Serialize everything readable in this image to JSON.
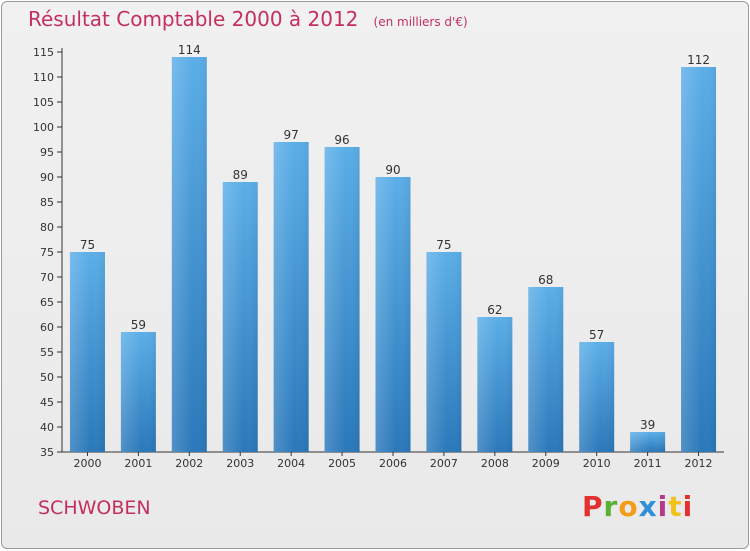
{
  "header": {
    "title": "Résultat Comptable 2000 à 2012",
    "subtitle": "(en milliers d'€)"
  },
  "footer": {
    "commune": "SCHWOBEN",
    "logo_letters": [
      "P",
      "r",
      "o",
      "x",
      "i",
      "t",
      "i"
    ]
  },
  "colors": {
    "accent": "#c4305e",
    "bar_top": "#5baee8",
    "bar_bottom": "#2a78ba"
  },
  "chart_data": {
    "type": "bar",
    "title": "Résultat Comptable 2000 à 2012",
    "subtitle": "(en milliers d'€)",
    "xlabel": "",
    "ylabel": "",
    "categories": [
      "2000",
      "2001",
      "2002",
      "2003",
      "2004",
      "2005",
      "2006",
      "2007",
      "2008",
      "2009",
      "2010",
      "2011",
      "2012"
    ],
    "values": [
      75,
      59,
      114,
      89,
      97,
      96,
      90,
      75,
      62,
      68,
      57,
      39,
      112
    ],
    "ylim": [
      35,
      115
    ],
    "yticks": [
      35,
      40,
      45,
      50,
      55,
      60,
      65,
      70,
      75,
      80,
      85,
      90,
      95,
      100,
      105,
      110,
      115
    ],
    "grid": false,
    "legend": "none"
  }
}
